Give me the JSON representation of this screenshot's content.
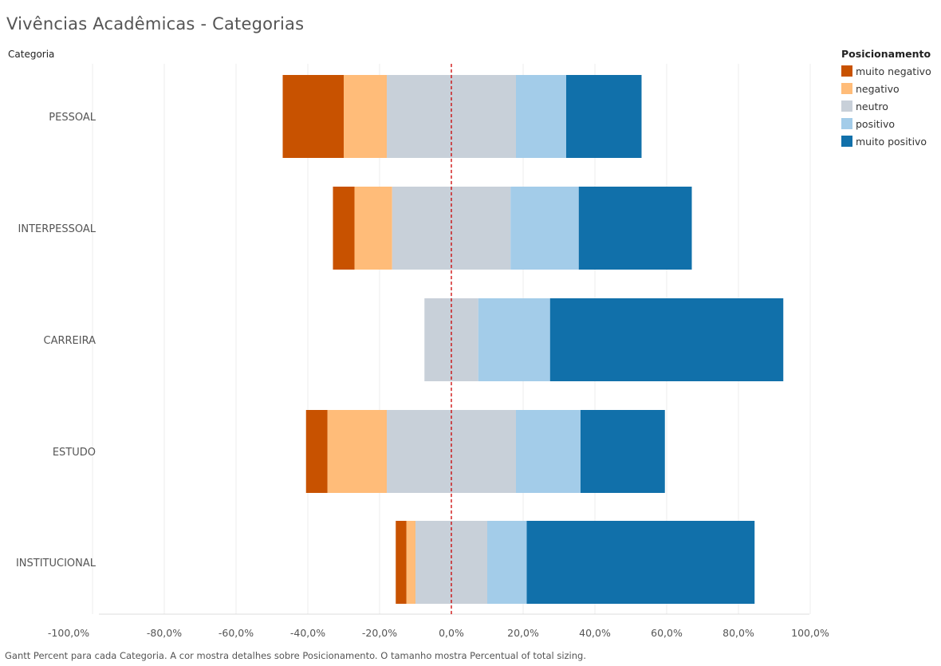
{
  "chart_data": {
    "type": "bar",
    "subtype": "diverging-stacked-horizontal",
    "title": "Vivências Acadêmicas - Categorias",
    "ylabel": "Categoria",
    "categories": [
      "PESSOAL",
      "INTERPESSOAL",
      "CARREIRA",
      "ESTUDO",
      "INSTITUCIONAL"
    ],
    "xlim": [
      -100,
      100
    ],
    "x_ticks": [
      -100,
      -80,
      -60,
      -40,
      -20,
      0,
      20,
      40,
      60,
      80,
      100
    ],
    "x_tick_labels": [
      "-100,0%",
      "-80,0%",
      "-60,0%",
      "-40,0%",
      "-20,0%",
      "0,0%",
      "20,0%",
      "40,0%",
      "60,0%",
      "80,0%",
      "100,0%"
    ],
    "reference_line": {
      "x": 0,
      "style": "dashed",
      "color": "#cc0000"
    },
    "legend": {
      "title": "Posicionamento",
      "placement": "top-right",
      "items": [
        {
          "label": "muito negativo",
          "color": "#c85200"
        },
        {
          "label": "negativo",
          "color": "#ffbc79"
        },
        {
          "label": "neutro",
          "color": "#c8d0d9"
        },
        {
          "label": "positivo",
          "color": "#a3cce9"
        },
        {
          "label": "muito positivo",
          "color": "#1170aa"
        }
      ]
    },
    "series": [
      {
        "name": "muito negativo",
        "color": "#c85200",
        "values": [
          17,
          6,
          0,
          6,
          3
        ]
      },
      {
        "name": "negativo",
        "color": "#ffbc79",
        "values": [
          12,
          10.5,
          0,
          16.5,
          2.5
        ]
      },
      {
        "name": "neutro",
        "color": "#c8d0d9",
        "values": [
          36,
          33,
          15,
          36,
          20
        ]
      },
      {
        "name": "positivo",
        "color": "#a3cce9",
        "values": [
          14,
          19,
          20,
          18,
          11
        ]
      },
      {
        "name": "muito positivo",
        "color": "#1170aa",
        "values": [
          21,
          31.5,
          65,
          23.5,
          63.5
        ]
      }
    ]
  },
  "footer": "Gantt Percent para cada Categoria.  A cor mostra detalhes sobre Posicionamento.  O tamanho mostra Percentual of total sizing."
}
